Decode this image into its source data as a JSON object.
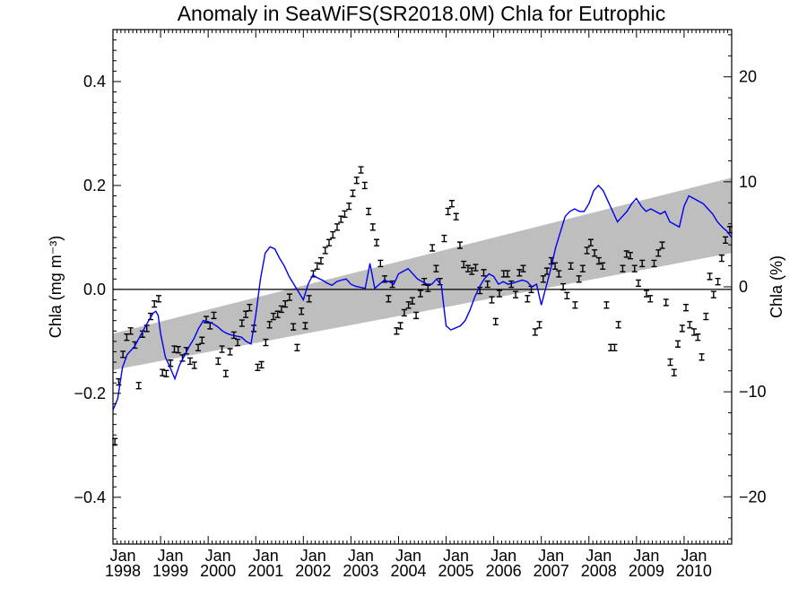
{
  "chart_data": {
    "type": "line",
    "title": "Anomaly in SeaWiFS(SR2018.0M) Chla for Eutrophic",
    "ylabel_left": "Chla (mg m⁻³)",
    "ylabel_right": "Chla (%)",
    "xlim": [
      1998.0,
      2011.0
    ],
    "ylim_left": [
      -0.49,
      0.5
    ],
    "ylim_right": [
      -24.5,
      24.5
    ],
    "left_ticks": [
      {
        "value": -0.4,
        "label": "−0.4"
      },
      {
        "value": -0.2,
        "label": "−0.2"
      },
      {
        "value": 0.0,
        "label": "0.0"
      },
      {
        "value": 0.2,
        "label": "0.2"
      },
      {
        "value": 0.4,
        "label": "0.4"
      }
    ],
    "right_ticks": [
      {
        "value": -20,
        "label": "−20"
      },
      {
        "value": -10,
        "label": "−10"
      },
      {
        "value": 0,
        "label": "0"
      },
      {
        "value": 10,
        "label": "10"
      },
      {
        "value": 20,
        "label": "20"
      }
    ],
    "x_ticks": [
      {
        "value": 1998,
        "month": "Jan",
        "year": "1998"
      },
      {
        "value": 1999,
        "month": "Jan",
        "year": "1999"
      },
      {
        "value": 2000,
        "month": "Jan",
        "year": "2000"
      },
      {
        "value": 2001,
        "month": "Jan",
        "year": "2001"
      },
      {
        "value": 2002,
        "month": "Jan",
        "year": "2002"
      },
      {
        "value": 2003,
        "month": "Jan",
        "year": "2003"
      },
      {
        "value": 2004,
        "month": "Jan",
        "year": "2004"
      },
      {
        "value": 2005,
        "month": "Jan",
        "year": "2005"
      },
      {
        "value": 2006,
        "month": "Jan",
        "year": "2006"
      },
      {
        "value": 2007,
        "month": "Jan",
        "year": "2007"
      },
      {
        "value": 2008,
        "month": "Jan",
        "year": "2008"
      },
      {
        "value": 2009,
        "month": "Jan",
        "year": "2009"
      },
      {
        "value": 2010,
        "month": "Jan",
        "year": "2010"
      }
    ],
    "zero_line": 0.0,
    "trend_band": {
      "x": [
        1998.0,
        2011.0
      ],
      "lower": [
        -0.155,
        0.07
      ],
      "upper": [
        -0.085,
        0.215
      ],
      "color": "#bebebe"
    },
    "series": [
      {
        "kind": "monthly_anomaly_errorbars",
        "color": "#000000",
        "error_halfwidth": 0.006,
        "x": [
          1998.04,
          1998.12,
          1998.21,
          1998.29,
          1998.37,
          1998.46,
          1998.54,
          1998.62,
          1998.71,
          1998.79,
          1998.87,
          1998.96,
          1999.04,
          1999.12,
          1999.21,
          1999.29,
          1999.37,
          1999.46,
          1999.54,
          1999.62,
          1999.71,
          1999.79,
          1999.87,
          1999.96,
          2000.04,
          2000.12,
          2000.21,
          2000.29,
          2000.37,
          2000.46,
          2000.54,
          2000.62,
          2000.71,
          2000.79,
          2000.87,
          2000.96,
          2001.04,
          2001.12,
          2001.21,
          2001.29,
          2001.37,
          2001.46,
          2001.54,
          2001.62,
          2001.71,
          2001.79,
          2001.87,
          2001.96,
          2002.04,
          2002.12,
          2002.21,
          2002.29,
          2002.37,
          2002.46,
          2002.54,
          2002.62,
          2002.71,
          2002.79,
          2002.87,
          2002.96,
          2003.04,
          2003.12,
          2003.21,
          2003.29,
          2003.37,
          2003.46,
          2003.54,
          2003.62,
          2003.71,
          2003.79,
          2003.87,
          2003.96,
          2004.04,
          2004.12,
          2004.21,
          2004.29,
          2004.37,
          2004.46,
          2004.54,
          2004.62,
          2004.71,
          2004.79,
          2004.87,
          2004.96,
          2005.04,
          2005.12,
          2005.21,
          2005.29,
          2005.37,
          2005.46,
          2005.54,
          2005.62,
          2005.71,
          2005.79,
          2005.87,
          2005.96,
          2006.04,
          2006.12,
          2006.21,
          2006.29,
          2006.37,
          2006.46,
          2006.54,
          2006.62,
          2006.71,
          2006.79,
          2006.87,
          2006.96,
          2007.04,
          2007.12,
          2007.21,
          2007.29,
          2007.37,
          2007.46,
          2007.54,
          2007.62,
          2007.71,
          2007.79,
          2007.87,
          2007.96,
          2008.04,
          2008.12,
          2008.21,
          2008.29,
          2008.37,
          2008.46,
          2008.54,
          2008.62,
          2008.71,
          2008.79,
          2008.87,
          2008.96,
          2009.04,
          2009.12,
          2009.21,
          2009.29,
          2009.37,
          2009.46,
          2009.54,
          2009.62,
          2009.71,
          2009.79,
          2009.87,
          2009.96,
          2010.04,
          2010.12,
          2010.21,
          2010.29,
          2010.37,
          2010.46,
          2010.54,
          2010.62,
          2010.71,
          2010.79,
          2010.87,
          2010.96
        ],
        "y": [
          -0.293,
          -0.178,
          -0.125,
          -0.092,
          -0.08,
          -0.107,
          -0.185,
          -0.086,
          -0.075,
          -0.052,
          -0.028,
          -0.018,
          -0.16,
          -0.162,
          -0.142,
          -0.115,
          -0.116,
          -0.132,
          -0.118,
          -0.138,
          -0.146,
          -0.112,
          -0.098,
          -0.058,
          -0.07,
          -0.05,
          -0.138,
          -0.115,
          -0.162,
          -0.12,
          -0.088,
          -0.102,
          -0.065,
          -0.048,
          -0.035,
          -0.075,
          -0.15,
          -0.145,
          -0.102,
          -0.068,
          -0.052,
          -0.048,
          -0.038,
          -0.028,
          -0.015,
          -0.072,
          -0.112,
          -0.042,
          -0.07,
          -0.018,
          0.03,
          0.045,
          0.055,
          0.075,
          0.09,
          0.105,
          0.12,
          0.135,
          0.145,
          0.16,
          0.185,
          0.21,
          0.23,
          0.2,
          0.15,
          0.12,
          0.09,
          0.05,
          0.02,
          -0.018,
          0.01,
          -0.08,
          -0.07,
          -0.045,
          -0.03,
          -0.022,
          -0.05,
          -0.008,
          0.015,
          0.002,
          0.08,
          0.04,
          0.015,
          0.098,
          0.15,
          0.165,
          0.14,
          0.085,
          0.048,
          0.04,
          0.035,
          0.042,
          -0.002,
          0.032,
          0.01,
          -0.02,
          -0.062,
          -0.008,
          0.03,
          0.03,
          0.01,
          -0.01,
          0.032,
          0.04,
          -0.018,
          0.0,
          -0.082,
          -0.068,
          0.02,
          0.035,
          0.055,
          0.045,
          0.03,
          0.005,
          -0.012,
          0.045,
          -0.03,
          0.02,
          0.04,
          0.075,
          0.09,
          0.07,
          0.055,
          0.045,
          -0.03,
          -0.112,
          -0.112,
          -0.068,
          0.04,
          0.068,
          0.065,
          0.04,
          0.012,
          0.05,
          -0.008,
          -0.018,
          0.05,
          0.07,
          0.085,
          -0.025,
          -0.14,
          -0.16,
          -0.105,
          -0.075,
          -0.035,
          -0.068,
          -0.082,
          -0.092,
          -0.13,
          -0.052,
          0.025,
          -0.01,
          0.015,
          0.06,
          0.095,
          0.115
        ]
      },
      {
        "kind": "running_mean",
        "color": "#0000ee",
        "x": [
          1998.0,
          1998.1,
          1998.2,
          1998.3,
          1998.45,
          1998.6,
          1998.75,
          1998.85,
          1998.9,
          1998.95,
          1999.0,
          1999.1,
          1999.2,
          1999.3,
          1999.4,
          1999.5,
          1999.6,
          1999.7,
          1999.8,
          1999.9,
          2000.0,
          2000.1,
          2000.2,
          2000.3,
          2000.4,
          2000.5,
          2000.6,
          2000.7,
          2000.8,
          2000.9,
          2001.0,
          2001.1,
          2001.2,
          2001.3,
          2001.4,
          2001.5,
          2001.6,
          2001.7,
          2001.8,
          2001.9,
          2002.0,
          2002.1,
          2002.2,
          2002.3,
          2002.4,
          2002.5,
          2002.6,
          2002.7,
          2002.8,
          2002.9,
          2003.0,
          2003.1,
          2003.2,
          2003.3,
          2003.4,
          2003.5,
          2003.6,
          2003.7,
          2003.8,
          2003.9,
          2004.0,
          2004.1,
          2004.2,
          2004.3,
          2004.4,
          2004.5,
          2004.6,
          2004.7,
          2004.8,
          2004.9,
          2005.0,
          2005.1,
          2005.2,
          2005.3,
          2005.4,
          2005.5,
          2005.6,
          2005.7,
          2005.8,
          2005.9,
          2006.0,
          2006.1,
          2006.2,
          2006.3,
          2006.4,
          2006.5,
          2006.6,
          2006.7,
          2006.8,
          2006.9,
          2007.0,
          2007.1,
          2007.2,
          2007.3,
          2007.4,
          2007.5,
          2007.6,
          2007.7,
          2007.8,
          2007.9,
          2008.0,
          2008.1,
          2008.2,
          2008.3,
          2008.4,
          2008.5,
          2008.6,
          2008.7,
          2008.8,
          2008.9,
          2009.0,
          2009.1,
          2009.2,
          2009.3,
          2009.4,
          2009.5,
          2009.6,
          2009.7,
          2009.8,
          2009.9,
          2010.0,
          2010.1,
          2010.2,
          2010.3,
          2010.4,
          2010.5,
          2010.6,
          2010.7,
          2010.8,
          2010.9,
          2011.0
        ],
        "y": [
          -0.232,
          -0.21,
          -0.15,
          -0.125,
          -0.11,
          -0.085,
          -0.06,
          -0.045,
          -0.042,
          -0.05,
          -0.085,
          -0.13,
          -0.15,
          -0.172,
          -0.145,
          -0.128,
          -0.11,
          -0.095,
          -0.075,
          -0.06,
          -0.062,
          -0.066,
          -0.072,
          -0.08,
          -0.085,
          -0.088,
          -0.09,
          -0.092,
          -0.1,
          -0.105,
          -0.05,
          0.02,
          0.07,
          0.082,
          0.078,
          0.06,
          0.045,
          0.025,
          0.01,
          -0.005,
          -0.02,
          0.01,
          0.028,
          0.022,
          0.018,
          0.012,
          0.008,
          0.015,
          0.018,
          0.02,
          0.01,
          0.006,
          0.004,
          0.002,
          0.05,
          0.002,
          0.01,
          0.018,
          0.015,
          0.01,
          0.03,
          0.035,
          0.04,
          0.03,
          0.02,
          0.015,
          0.01,
          0.01,
          0.02,
          0.008,
          -0.07,
          -0.078,
          -0.074,
          -0.07,
          -0.06,
          -0.04,
          -0.015,
          0.005,
          0.02,
          0.03,
          0.025,
          0.01,
          0.015,
          0.01,
          0.012,
          0.015,
          0.018,
          0.015,
          0.005,
          0.01,
          -0.03,
          0.005,
          0.04,
          0.08,
          0.11,
          0.14,
          0.15,
          0.155,
          0.15,
          0.15,
          0.165,
          0.19,
          0.2,
          0.19,
          0.17,
          0.15,
          0.13,
          0.14,
          0.15,
          0.165,
          0.175,
          0.16,
          0.15,
          0.155,
          0.15,
          0.145,
          0.15,
          0.13,
          0.125,
          0.12,
          0.16,
          0.18,
          0.175,
          0.17,
          0.165,
          0.155,
          0.145,
          0.13,
          0.12,
          0.112,
          0.1
        ]
      }
    ]
  }
}
